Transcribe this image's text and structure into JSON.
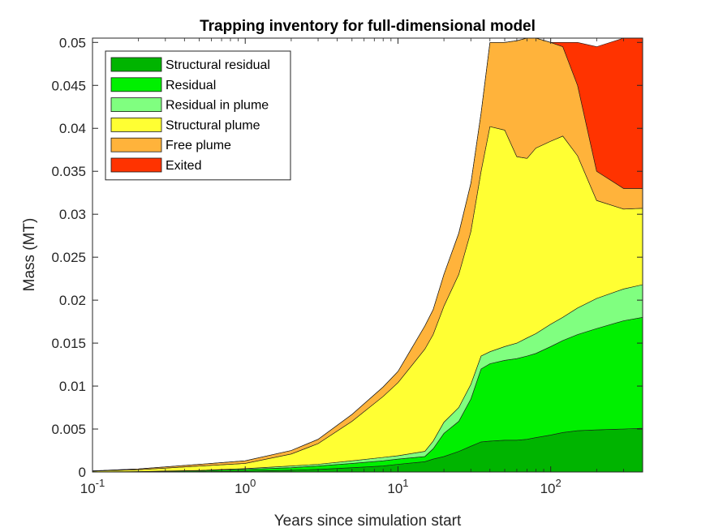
{
  "chart_data": {
    "type": "area",
    "stacked": true,
    "title": "Trapping inventory for full-dimensional model",
    "xlabel": "Years since simulation start",
    "ylabel": "Mass (MT)",
    "xscale": "log",
    "xlim": [
      0.1,
      400
    ],
    "ylim": [
      0,
      0.0505
    ],
    "x_ticks": [
      {
        "value": 0.1,
        "base": "10",
        "exp": "-1"
      },
      {
        "value": 1,
        "base": "10",
        "exp": "0"
      },
      {
        "value": 10,
        "base": "10",
        "exp": "1"
      },
      {
        "value": 100,
        "base": "10",
        "exp": "2"
      }
    ],
    "y_ticks": [
      0,
      0.005,
      0.01,
      0.015,
      0.02,
      0.025,
      0.03,
      0.035,
      0.04,
      0.045,
      0.05
    ],
    "y_tick_labels": [
      "0",
      "0.005",
      "0.01",
      "0.015",
      "0.02",
      "0.025",
      "0.03",
      "0.035",
      "0.04",
      "0.045",
      "0.05"
    ],
    "grid": false,
    "legend_position": "top-left",
    "x": [
      0.1,
      0.2,
      0.5,
      1,
      2,
      3,
      5,
      8,
      10,
      15,
      17,
      20,
      25,
      30,
      35,
      40,
      50,
      60,
      70,
      80,
      100,
      120,
      150,
      200,
      300,
      400
    ],
    "series": [
      {
        "name": "Structural residual",
        "color": "#00b400",
        "values": [
          0,
          1e-05,
          4e-05,
          0.0001,
          0.0002,
          0.0003,
          0.0005,
          0.0007,
          0.0009,
          0.0012,
          0.0015,
          0.0018,
          0.0024,
          0.003,
          0.0035,
          0.0036,
          0.0037,
          0.0037,
          0.0038,
          0.004,
          0.0043,
          0.0046,
          0.0048,
          0.0049,
          0.005,
          0.0051
        ]
      },
      {
        "name": "Residual",
        "color": "#00f000",
        "values": [
          0,
          3e-05,
          0.0001,
          0.0002,
          0.0003,
          0.0004,
          0.0005,
          0.0006,
          0.0006,
          0.0006,
          0.0012,
          0.0027,
          0.0035,
          0.0055,
          0.0085,
          0.009,
          0.0093,
          0.0095,
          0.0097,
          0.0098,
          0.0103,
          0.0107,
          0.0112,
          0.0118,
          0.0126,
          0.0129
        ]
      },
      {
        "name": "Residual in plume",
        "color": "#80ff80",
        "values": [
          0,
          2e-05,
          5e-05,
          0.0001,
          0.0002,
          0.0002,
          0.0003,
          0.0004,
          0.0004,
          0.0006,
          0.0009,
          0.0013,
          0.0016,
          0.0017,
          0.0015,
          0.0014,
          0.0016,
          0.0018,
          0.0021,
          0.0023,
          0.0026,
          0.0027,
          0.0031,
          0.0035,
          0.0037,
          0.0038
        ]
      },
      {
        "name": "Structural plume",
        "color": "#ffff33",
        "values": [
          0.0001,
          0.0002,
          0.0005,
          0.0006,
          0.0014,
          0.0024,
          0.0046,
          0.0071,
          0.0085,
          0.0119,
          0.0124,
          0.0135,
          0.0155,
          0.0178,
          0.0215,
          0.0262,
          0.0252,
          0.0217,
          0.0209,
          0.0216,
          0.0213,
          0.0211,
          0.0177,
          0.0114,
          0.0093,
          0.0089
        ]
      },
      {
        "name": "Free plume",
        "color": "#ffb33b",
        "values": [
          3e-05,
          0.0001,
          0.0002,
          0.0003,
          0.0004,
          0.0005,
          0.0008,
          0.0011,
          0.0013,
          0.0027,
          0.0029,
          0.0037,
          0.0048,
          0.0056,
          0.0068,
          0.0098,
          0.0102,
          0.0135,
          0.014,
          0.0128,
          0.0115,
          0.0104,
          0.0082,
          0.0034,
          0.0024,
          0.0023
        ]
      },
      {
        "name": "Exited",
        "color": "#ff3300",
        "values": [
          0,
          0,
          0,
          0,
          0,
          0,
          0,
          0,
          0,
          0,
          0,
          0,
          0,
          0,
          0,
          0,
          0,
          0,
          0,
          0,
          0,
          0.0005,
          0.005,
          0.0145,
          0.0175,
          0.0175
        ]
      }
    ]
  }
}
